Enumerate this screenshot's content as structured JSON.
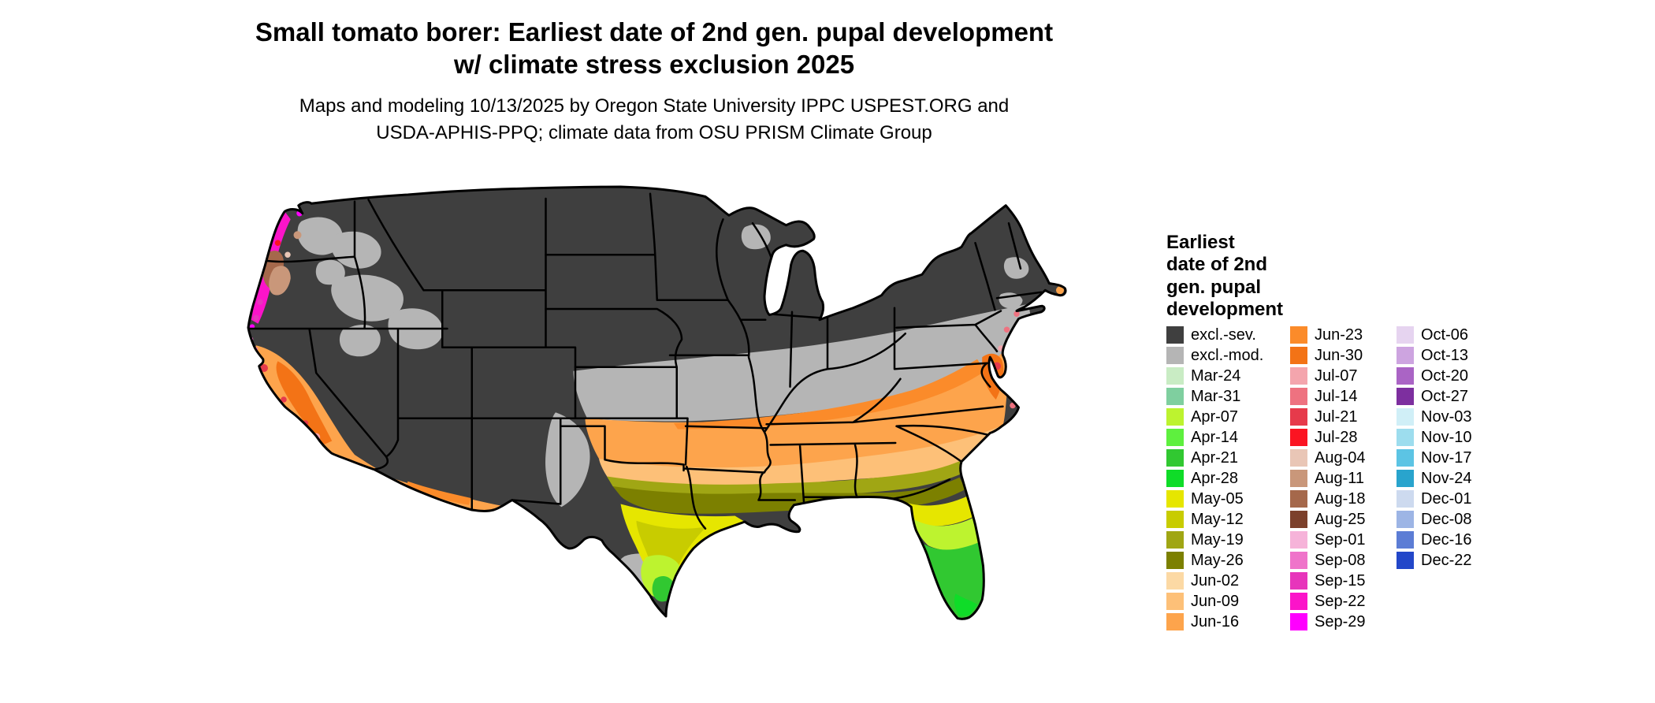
{
  "title": "Small tomato borer: Earliest date of 2nd gen. pupal development\nw/ climate stress exclusion 2025",
  "subtitle": "Maps and modeling 10/13/2025 by Oregon State University IPPC USPEST.ORG and\nUSDA-APHIS-PPQ; climate data from OSU PRISM Climate Group",
  "legend": {
    "title": "Earliest\ndate of 2nd\ngen. pupal\ndevelopment",
    "columns": [
      [
        {
          "label": "excl.-sev.",
          "color": "#3f3f3f"
        },
        {
          "label": "excl.-mod.",
          "color": "#b5b5b5"
        },
        {
          "label": "Mar-24",
          "color": "#c9ecc4"
        },
        {
          "label": "Mar-31",
          "color": "#7fcf9f"
        },
        {
          "label": "Apr-07",
          "color": "#bdf32f"
        },
        {
          "label": "Apr-14",
          "color": "#5ef03e"
        },
        {
          "label": "Apr-21",
          "color": "#31c831"
        },
        {
          "label": "Apr-28",
          "color": "#0fdc28"
        },
        {
          "label": "May-05",
          "color": "#e6e600"
        },
        {
          "label": "May-12",
          "color": "#c8cc00"
        },
        {
          "label": "May-19",
          "color": "#a0a614"
        },
        {
          "label": "May-26",
          "color": "#7c8000"
        },
        {
          "label": "Jun-02",
          "color": "#fcd9a4"
        },
        {
          "label": "Jun-09",
          "color": "#fdc078"
        },
        {
          "label": "Jun-16",
          "color": "#fda44c"
        }
      ],
      [
        {
          "label": "Jun-23",
          "color": "#fb8b2a"
        },
        {
          "label": "Jun-30",
          "color": "#f37316"
        },
        {
          "label": "Jul-07",
          "color": "#f4a5ad"
        },
        {
          "label": "Jul-14",
          "color": "#ee7280"
        },
        {
          "label": "Jul-21",
          "color": "#e63a4b"
        },
        {
          "label": "Jul-28",
          "color": "#fb1422"
        },
        {
          "label": "Aug-04",
          "color": "#e9c6b6"
        },
        {
          "label": "Aug-11",
          "color": "#c9977a"
        },
        {
          "label": "Aug-18",
          "color": "#a5684b"
        },
        {
          "label": "Aug-25",
          "color": "#7c402b"
        },
        {
          "label": "Sep-01",
          "color": "#f6b3d9"
        },
        {
          "label": "Sep-08",
          "color": "#ef74ca"
        },
        {
          "label": "Sep-15",
          "color": "#e735bb"
        },
        {
          "label": "Sep-22",
          "color": "#fb14c9"
        },
        {
          "label": "Sep-29",
          "color": "#ff00ff"
        }
      ],
      [
        {
          "label": "Oct-06",
          "color": "#e6d4f0"
        },
        {
          "label": "Oct-13",
          "color": "#cda4e0"
        },
        {
          "label": "Oct-20",
          "color": "#aa64c5"
        },
        {
          "label": "Oct-27",
          "color": "#7d2f9f"
        },
        {
          "label": "Nov-03",
          "color": "#d0eff7"
        },
        {
          "label": "Nov-10",
          "color": "#9dddee"
        },
        {
          "label": "Nov-17",
          "color": "#5cc4e4"
        },
        {
          "label": "Nov-24",
          "color": "#29a4cd"
        },
        {
          "label": "Dec-01",
          "color": "#cddaef"
        },
        {
          "label": "Dec-08",
          "color": "#9db5e5"
        },
        {
          "label": "Dec-16",
          "color": "#5c7dd5"
        },
        {
          "label": "Dec-22",
          "color": "#2347c9"
        }
      ]
    ]
  }
}
